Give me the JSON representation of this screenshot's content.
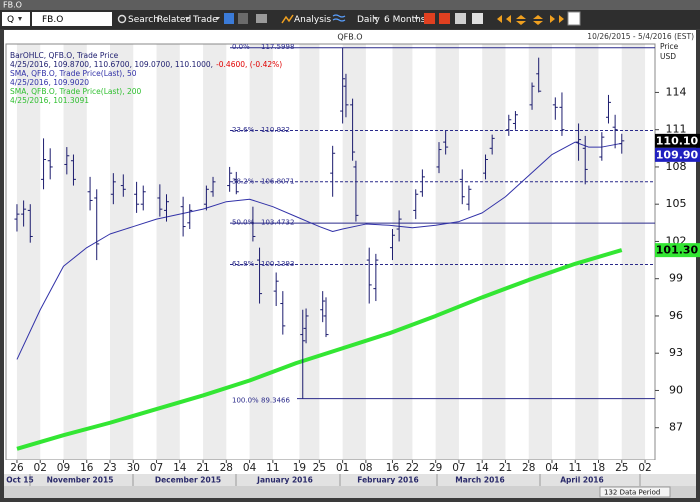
{
  "window_title": "FB.O",
  "toolbar": {
    "symbol_prefix": "Q",
    "symbol": "FB.O",
    "search": "Search",
    "related": "Related",
    "trade": "Trade",
    "analysis": "Analysis",
    "interval": "Daily",
    "period": "6 Months"
  },
  "chart_data": {
    "type": "ohlc",
    "title": "QFB.O",
    "date_range": "10/26/2015 - 5/4/2016 (EST)",
    "y_axis_label": [
      "Price",
      "USD"
    ],
    "ohlc_name": "BarOHLC, QFB.O, Trade Price",
    "ohlc_last": [
      "4/25/2016, 109.8700, 110.6700, 109.0700, 110.1000,",
      "-0.4600, (-0.42%)"
    ],
    "ohlc_color": "#1c1c6e",
    "change_color": "#e00000",
    "x": [
      0,
      2,
      4,
      8,
      10,
      15,
      17,
      22,
      24,
      29,
      32,
      36,
      38,
      43,
      45,
      50,
      52,
      57,
      59,
      64,
      66,
      71,
      73,
      78,
      80,
      86,
      87,
      92,
      93,
      95,
      98,
      99,
      101,
      102,
      106,
      108,
      113,
      115,
      120,
      122,
      127,
      129,
      134,
      136,
      141,
      143,
      148,
      150,
      155,
      157,
      162,
      164,
      169,
      171,
      176,
      178,
      180,
      182
    ],
    "ohlc": [
      [
        103.8,
        105.0,
        102.8,
        104.2
      ],
      [
        104.2,
        105.3,
        103.2,
        104.6
      ],
      [
        104.5,
        105.0,
        101.9,
        102.4
      ],
      [
        107.0,
        110.3,
        106.2,
        108.6
      ],
      [
        108.5,
        109.5,
        107.0,
        108.0
      ],
      [
        108.2,
        109.6,
        107.4,
        108.9
      ],
      [
        108.5,
        109.0,
        106.5,
        107.0
      ],
      [
        106.0,
        107.2,
        104.5,
        105.3
      ],
      [
        105.5,
        106.2,
        100.5,
        101.8
      ],
      [
        105.8,
        107.5,
        105.0,
        106.8
      ],
      [
        106.5,
        107.4,
        105.6,
        106.2
      ],
      [
        105.8,
        106.8,
        104.3,
        105.0
      ],
      [
        105.0,
        106.5,
        104.5,
        106.0
      ],
      [
        105.5,
        106.6,
        104.0,
        104.6
      ],
      [
        104.5,
        105.8,
        103.6,
        105.2
      ],
      [
        104.8,
        105.6,
        102.4,
        103.2
      ],
      [
        103.5,
        105.0,
        103.0,
        104.5
      ],
      [
        105.0,
        106.5,
        104.5,
        106.2
      ],
      [
        106.0,
        107.2,
        105.6,
        106.8
      ],
      [
        106.5,
        108.0,
        106.0,
        107.5
      ],
      [
        107.0,
        107.6,
        105.8,
        106.0
      ],
      [
        103.5,
        104.8,
        102.0,
        102.4
      ],
      [
        100.5,
        101.5,
        97.0,
        97.8
      ],
      [
        98.0,
        99.5,
        96.8,
        98.8
      ],
      [
        97.0,
        98.0,
        94.5,
        95.2
      ],
      [
        94.5,
        96.5,
        89.35,
        94.0
      ],
      [
        95.0,
        96.6,
        93.8,
        96.0
      ],
      [
        96.5,
        98.0,
        95.5,
        97.2
      ],
      [
        96.0,
        97.5,
        94.3,
        94.5
      ],
      [
        107.5,
        109.7,
        105.6,
        109.1
      ],
      [
        112.5,
        117.6,
        111.5,
        115.1
      ],
      [
        114.5,
        115.5,
        112.0,
        113.0
      ],
      [
        113.0,
        113.5,
        108.5,
        109.2
      ],
      [
        108.0,
        108.5,
        103.6,
        104.1
      ],
      [
        100.5,
        101.5,
        97.0,
        98.5
      ],
      [
        98.2,
        101.0,
        97.2,
        100.5
      ],
      [
        101.5,
        103.0,
        100.5,
        102.5
      ],
      [
        103.0,
        104.5,
        102.0,
        103.8
      ],
      [
        104.5,
        106.2,
        103.8,
        105.8
      ],
      [
        106.0,
        107.8,
        105.6,
        107.2
      ],
      [
        108.0,
        110.0,
        107.5,
        109.4
      ],
      [
        110.0,
        110.9,
        109.0,
        109.6
      ],
      [
        107.0,
        107.8,
        105.0,
        105.6
      ],
      [
        105.0,
        106.5,
        104.5,
        106.2
      ],
      [
        107.5,
        109.0,
        107.0,
        108.6
      ],
      [
        109.5,
        110.6,
        109.0,
        110.3
      ],
      [
        111.0,
        112.2,
        110.5,
        111.8
      ],
      [
        111.5,
        112.5,
        111.0,
        112.2
      ],
      [
        113.0,
        114.8,
        112.6,
        114.5
      ],
      [
        115.5,
        116.8,
        114.0,
        114.1
      ],
      [
        113.0,
        113.6,
        111.8,
        112.8
      ],
      [
        112.8,
        114.0,
        110.5,
        111.0
      ],
      [
        110.0,
        111.5,
        108.5,
        110.2
      ],
      [
        109.5,
        110.5,
        106.6,
        107.8
      ],
      [
        108.8,
        110.8,
        108.5,
        110.4
      ],
      [
        112.0,
        113.8,
        111.5,
        113.2
      ],
      [
        111.2,
        112.2,
        109.5,
        111.0
      ],
      [
        109.87,
        110.67,
        109.07,
        110.1
      ]
    ],
    "series": [
      {
        "name": "SMA, QFB.O, Trade Price(Last), 50",
        "last_label": "4/25/2016, 109.9020",
        "color": "#3232a8",
        "width": 1,
        "x": [
          0,
          7,
          14,
          21,
          28,
          35,
          42,
          49,
          56,
          63,
          70,
          77,
          84,
          91,
          95,
          98,
          105,
          112,
          119,
          126,
          133,
          140,
          147,
          154,
          161,
          168,
          172,
          176,
          182
        ],
        "values": [
          92.5,
          96.5,
          100,
          101.5,
          102.6,
          103.2,
          103.8,
          104.2,
          104.6,
          105.2,
          105.4,
          104.8,
          104.0,
          103.2,
          102.8,
          103.0,
          103.4,
          103.3,
          103.1,
          103.3,
          103.6,
          104.3,
          105.6,
          107.3,
          109.0,
          110.0,
          109.6,
          109.6,
          109.902
        ]
      },
      {
        "name": "SMA, QFB.O, Trade Price(Last), 200",
        "last_label": "4/25/2016, 101.3091",
        "color": "#33e633",
        "width": 4,
        "x": [
          0,
          14,
          28,
          42,
          56,
          70,
          84,
          98,
          112,
          126,
          140,
          154,
          168,
          182
        ],
        "values": [
          85.3,
          86.4,
          87.4,
          88.5,
          89.6,
          90.8,
          92.2,
          93.4,
          94.6,
          96.0,
          97.5,
          98.9,
          100.2,
          101.3091
        ]
      }
    ],
    "fib_levels": [
      {
        "label": "0.0%",
        "value": 117.5998
      },
      {
        "label": "23.6%",
        "value": 110.932
      },
      {
        "label": "38.2%",
        "value": 106.8071
      },
      {
        "label": "50.0%",
        "value": 103.4732
      },
      {
        "label": "61.8%",
        "value": 100.1393
      },
      {
        "label": "100.0%",
        "value": 89.3466
      }
    ],
    "fib_color": "#2a2a8a",
    "xlim": [
      -3.3,
      192
    ],
    "ylim": [
      84.4,
      117.9
    ],
    "xticks": [
      {
        "value": 0,
        "label": "26"
      },
      {
        "value": 7,
        "label": "02"
      },
      {
        "value": 14,
        "label": "09"
      },
      {
        "value": 21,
        "label": "16"
      },
      {
        "value": 28,
        "label": "23"
      },
      {
        "value": 35,
        "label": "30"
      },
      {
        "value": 42,
        "label": "07"
      },
      {
        "value": 49,
        "label": "14"
      },
      {
        "value": 56,
        "label": "21"
      },
      {
        "value": 63,
        "label": "28"
      },
      {
        "value": 70,
        "label": "04"
      },
      {
        "value": 77,
        "label": "11"
      },
      {
        "value": 85,
        "label": "19"
      },
      {
        "value": 91,
        "label": "25"
      },
      {
        "value": 98,
        "label": "01"
      },
      {
        "value": 105,
        "label": "08"
      },
      {
        "value": 113,
        "label": "16"
      },
      {
        "value": 119,
        "label": "22"
      },
      {
        "value": 126,
        "label": "29"
      },
      {
        "value": 133,
        "label": "07"
      },
      {
        "value": 140,
        "label": "14"
      },
      {
        "value": 147,
        "label": "21"
      },
      {
        "value": 154,
        "label": "28"
      },
      {
        "value": 161,
        "label": "04"
      },
      {
        "value": 168,
        "label": "11"
      },
      {
        "value": 175,
        "label": "18"
      },
      {
        "value": 182,
        "label": "25"
      },
      {
        "value": 189,
        "label": "02"
      }
    ],
    "yticks": [
      87,
      90,
      93,
      96,
      99,
      102,
      105,
      108,
      111,
      114
    ],
    "month_labels": [
      "Oct 15",
      "November 2015",
      "December 2015",
      "January 2016",
      "February 2016",
      "March 2016",
      "April 2016"
    ],
    "price_labels": [
      {
        "value": 110.1,
        "label": "110.10",
        "color": "#000000",
        "text_color": "#ffffff"
      },
      {
        "value": 109.9,
        "label": "109.90",
        "color": "#2020c0",
        "text_color": "#ffffff"
      },
      {
        "value": 101.3,
        "label": "101.30",
        "color": "#33e633",
        "text_color": "#000000"
      }
    ],
    "footer": "132 Data Period"
  }
}
